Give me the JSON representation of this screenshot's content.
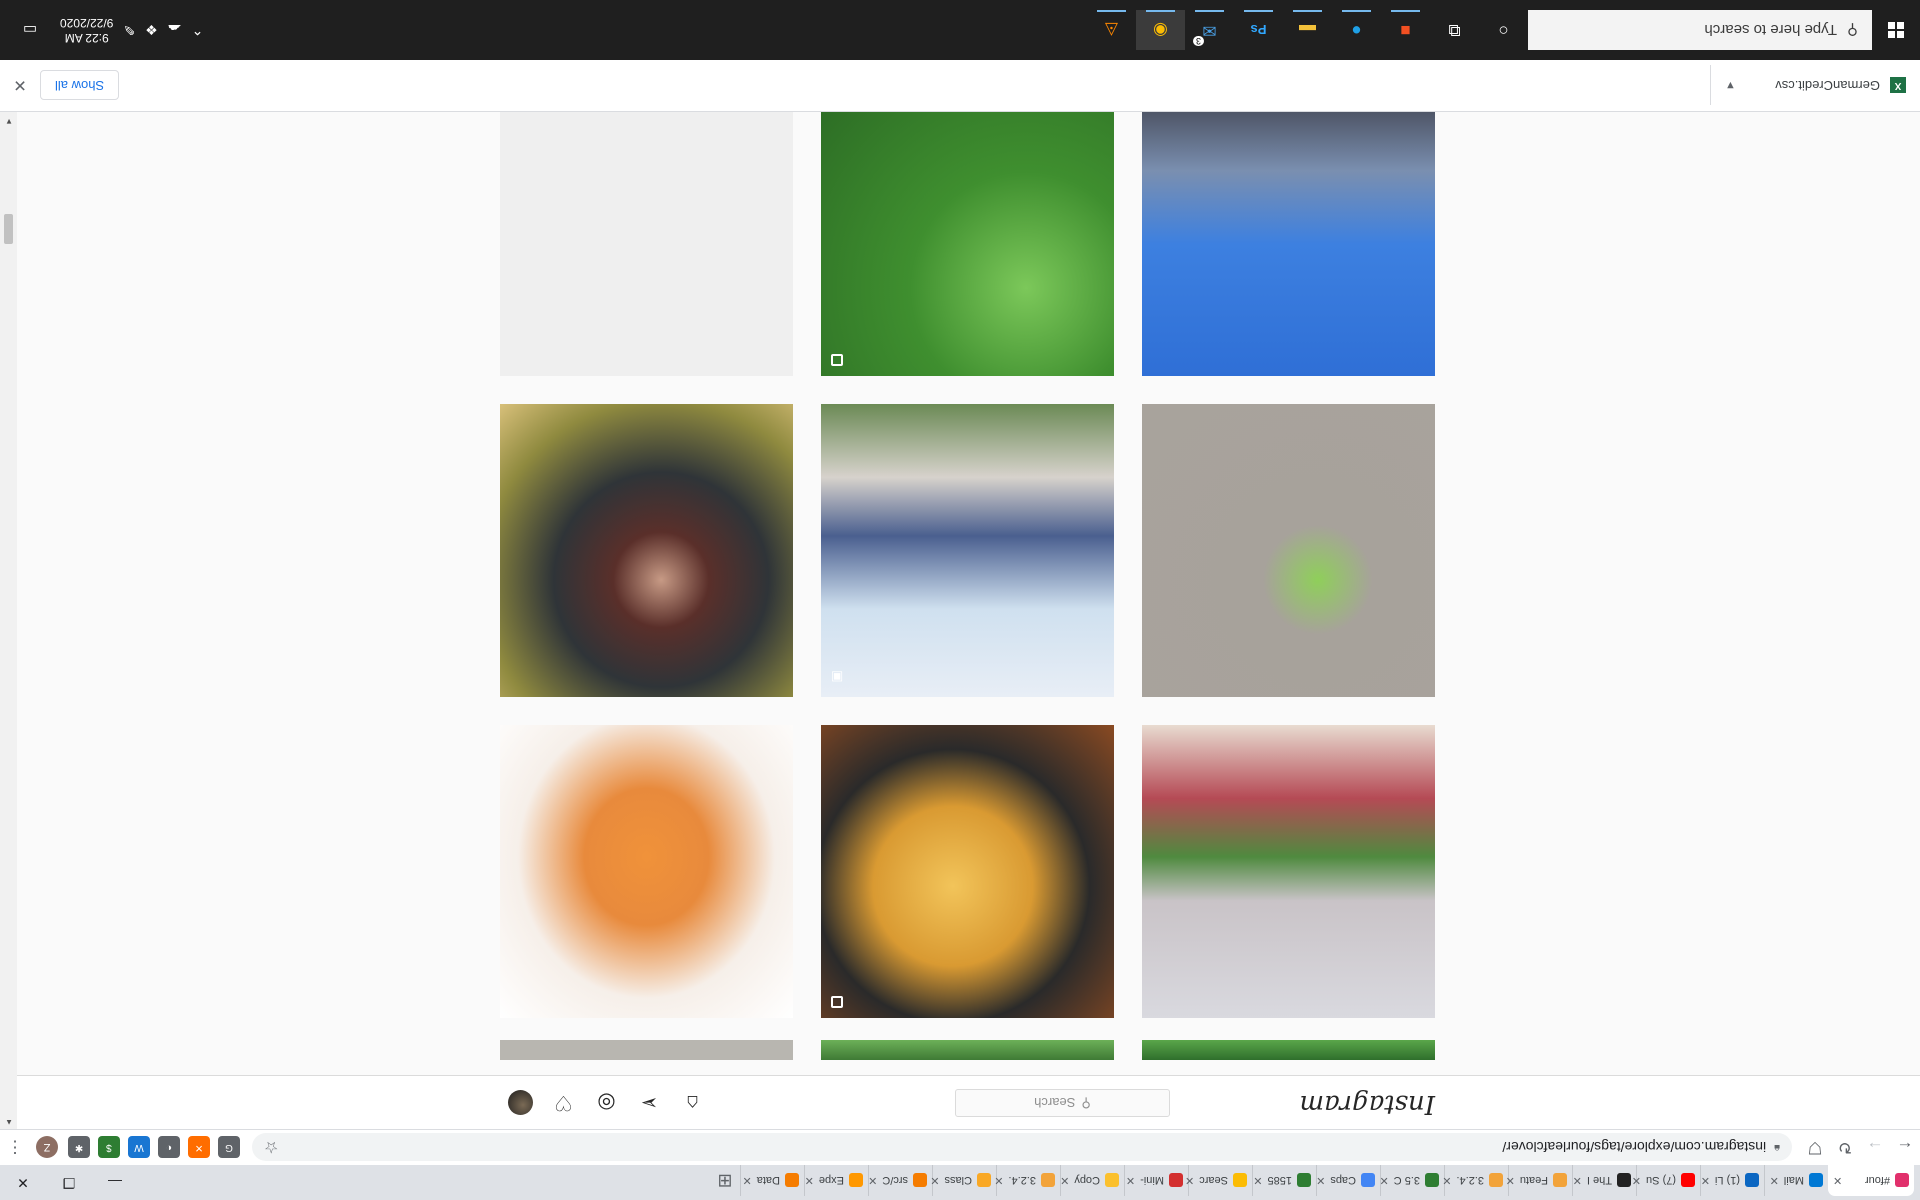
{
  "browser": {
    "tabs": [
      {
        "label": "#four",
        "active": true,
        "color": "#e1306c"
      },
      {
        "label": "Mail",
        "color": "#0078d4"
      },
      {
        "label": "(1) Li",
        "color": "#0a66c2"
      },
      {
        "label": "(7) Su",
        "color": "#ff0000"
      },
      {
        "label": "The I",
        "color": "#222222"
      },
      {
        "label": "Featu",
        "color": "#f2a33a"
      },
      {
        "label": "3.2.4.",
        "color": "#f2a33a"
      },
      {
        "label": "3.5 C",
        "color": "#2e7d32"
      },
      {
        "label": "Caps",
        "color": "#4285f4"
      },
      {
        "label": "1585",
        "color": "#2e7d32"
      },
      {
        "label": "Searc",
        "color": "#fbbc04"
      },
      {
        "label": "Mini-",
        "color": "#d32f2f"
      },
      {
        "label": "Copy",
        "color": "#fbc02d"
      },
      {
        "label": "3.2.4.",
        "color": "#f2a33a"
      },
      {
        "label": "Class",
        "color": "#f9a825"
      },
      {
        "label": "src/C",
        "color": "#f57c00"
      },
      {
        "label": "Expe",
        "color": "#ff9800"
      },
      {
        "label": "Data",
        "color": "#f57c00"
      }
    ],
    "url": "instagram.com/explore/tags/fourleafclover/",
    "extensions": [
      {
        "name": "g-ext",
        "color": "#5f6368",
        "glyph": "G"
      },
      {
        "name": "orange-ext",
        "color": "#ff6d00",
        "glyph": "✕"
      },
      {
        "name": "circle-ext",
        "color": "#5f6368",
        "glyph": "◐"
      },
      {
        "name": "blue-ext",
        "color": "#1976d2",
        "glyph": "W"
      },
      {
        "name": "green-ext",
        "color": "#2e7d32",
        "glyph": "$"
      },
      {
        "name": "puzzle-ext",
        "color": "#5f6368",
        "glyph": "✱"
      }
    ],
    "profile_initial": "Z"
  },
  "instagram": {
    "logo": "Instagram",
    "search_placeholder": "Search"
  },
  "downloads": {
    "file": "GermanCredit.csv",
    "show_all": "Show all"
  },
  "taskbar": {
    "search_placeholder": "Type here to search",
    "time": "9:22 AM",
    "date": "9/22/2020",
    "badge": "3"
  }
}
